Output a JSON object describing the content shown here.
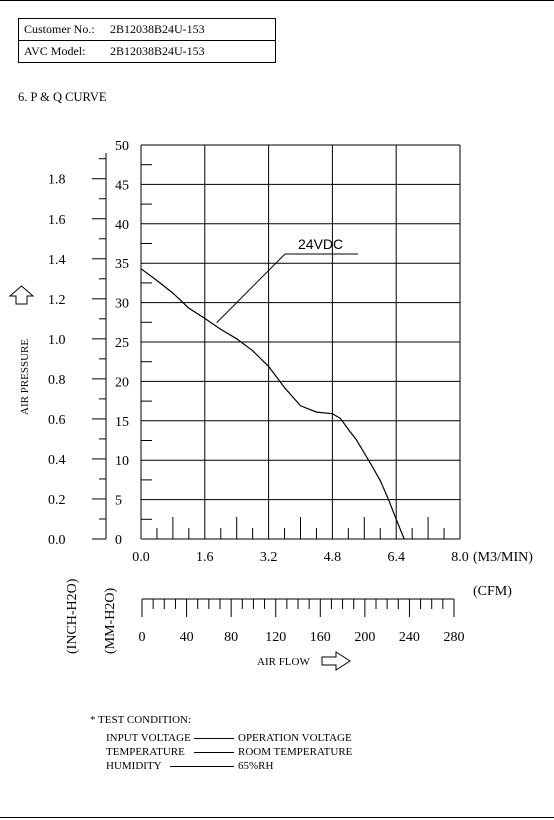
{
  "header": {
    "rows": [
      {
        "label": "Customer No.:",
        "value": "2B12038B24U-153"
      },
      {
        "label": "AVC Model:",
        "value": "2B12038B24U-153"
      }
    ]
  },
  "section_title": "6. P & Q CURVE",
  "chart_data": {
    "type": "line",
    "title": "",
    "series": [
      {
        "name": "24VDC",
        "x_unit": "M3/MIN",
        "y_unit": "MM-H2O",
        "points": [
          [
            0.0,
            34.3
          ],
          [
            0.4,
            32.8
          ],
          [
            0.8,
            31.2
          ],
          [
            1.2,
            29.3
          ],
          [
            1.6,
            28.0
          ],
          [
            2.0,
            26.6
          ],
          [
            2.4,
            25.4
          ],
          [
            2.8,
            23.9
          ],
          [
            3.2,
            21.9
          ],
          [
            3.6,
            19.2
          ],
          [
            4.0,
            16.9
          ],
          [
            4.4,
            16.1
          ],
          [
            4.8,
            15.9
          ],
          [
            5.0,
            15.3
          ],
          [
            5.2,
            13.9
          ],
          [
            5.4,
            12.6
          ],
          [
            5.6,
            10.9
          ],
          [
            5.8,
            9.2
          ],
          [
            6.0,
            7.4
          ],
          [
            6.2,
            5.1
          ],
          [
            6.4,
            2.5
          ],
          [
            6.6,
            0.0
          ]
        ]
      }
    ],
    "x_axis": {
      "ticks": [
        "0.0",
        "1.6",
        "3.2",
        "4.8",
        "6.4",
        "8.0"
      ],
      "unit_label": "(M3/MIN)",
      "range": [
        0,
        8
      ]
    },
    "y_axis_mm": {
      "ticks": [
        "0",
        "5",
        "10",
        "15",
        "20",
        "25",
        "30",
        "35",
        "40",
        "45",
        "50"
      ],
      "unit_label": "(MM-H2O)",
      "range": [
        0,
        50
      ]
    },
    "y_axis_inch": {
      "ticks": [
        "0.0",
        "0.2",
        "0.4",
        "0.6",
        "0.8",
        "1.0",
        "1.2",
        "1.4",
        "1.6",
        "1.8"
      ],
      "unit_label": "(INCH-H2O)"
    },
    "cfm_axis": {
      "ticks": [
        "0",
        "40",
        "80",
        "120",
        "160",
        "200",
        "240",
        "280"
      ],
      "unit_label": "(CFM)",
      "range": [
        0,
        280
      ]
    },
    "ylabel": "AIR PRESSURE",
    "xlabel": "AIR FLOW",
    "grid": true
  },
  "test_condition": {
    "title": "* TEST CONDITION:",
    "rows": [
      {
        "label": "INPUT VOLTAGE",
        "value": "OPERATION VOLTAGE"
      },
      {
        "label": "TEMPERATURE",
        "value": "ROOM TEMPERATURE"
      },
      {
        "label": "HUMIDITY",
        "value": "65%RH"
      }
    ]
  }
}
